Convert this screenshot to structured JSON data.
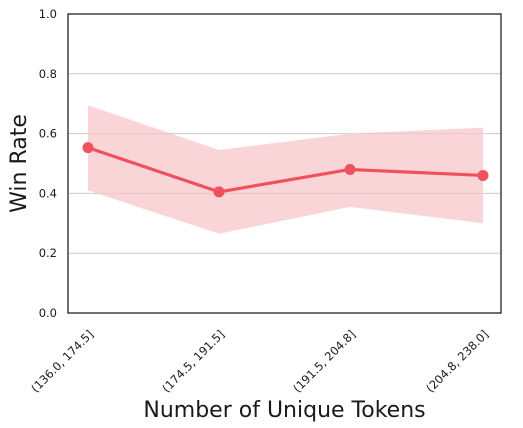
{
  "chart_data": {
    "type": "line",
    "xlabel": "Number of Unique Tokens",
    "ylabel": "Win Rate",
    "categories": [
      "(136.0, 174.5]",
      "(174.5, 191.5]",
      "(191.5, 204.8]",
      "(204.8, 238.0]"
    ],
    "series": [
      {
        "values": [
          0.553,
          0.405,
          0.48,
          0.46
        ],
        "ci_lower": [
          0.41,
          0.265,
          0.355,
          0.3
        ],
        "ci_upper": [
          0.695,
          0.545,
          0.6,
          0.62
        ],
        "color": "#f0515e",
        "band_color": "#f7c3c8"
      }
    ],
    "ylim": [
      0.0,
      1.0
    ],
    "yticks": [
      "0.0",
      "0.2",
      "0.4",
      "0.6",
      "0.8",
      "1.0"
    ],
    "grid": "horizontal",
    "legend": "none"
  }
}
